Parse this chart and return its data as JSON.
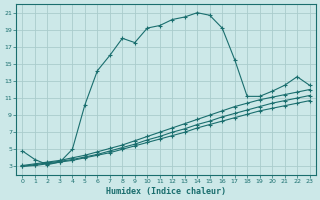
{
  "xlabel": "Humidex (Indice chaleur)",
  "bg_color": "#cce8e8",
  "grid_color": "#aacccc",
  "line_color": "#1a6e6e",
  "x_data": [
    0,
    1,
    2,
    3,
    4,
    5,
    6,
    7,
    8,
    9,
    10,
    11,
    12,
    13,
    14,
    15,
    16,
    17,
    18,
    19,
    20,
    21,
    22,
    23
  ],
  "line1": [
    4.8,
    3.8,
    3.2,
    3.5,
    5.0,
    10.2,
    14.2,
    16.0,
    18.0,
    17.5,
    19.2,
    19.5,
    20.2,
    20.5,
    21.0,
    20.7,
    19.2,
    15.5,
    11.2,
    11.2,
    11.8,
    12.5,
    13.5,
    12.5
  ],
  "line2": [
    3.1,
    3.3,
    3.5,
    3.7,
    4.0,
    4.3,
    4.7,
    5.1,
    5.5,
    6.0,
    6.5,
    7.0,
    7.5,
    8.0,
    8.5,
    9.0,
    9.5,
    10.0,
    10.4,
    10.8,
    11.1,
    11.4,
    11.7,
    12.0
  ],
  "line3": [
    3.0,
    3.2,
    3.4,
    3.6,
    3.8,
    4.1,
    4.4,
    4.8,
    5.2,
    5.6,
    6.1,
    6.5,
    7.0,
    7.4,
    7.9,
    8.3,
    8.8,
    9.2,
    9.6,
    10.0,
    10.4,
    10.7,
    11.0,
    11.3
  ],
  "line4": [
    3.0,
    3.1,
    3.3,
    3.5,
    3.7,
    4.0,
    4.3,
    4.6,
    5.0,
    5.4,
    5.8,
    6.2,
    6.6,
    7.0,
    7.5,
    7.9,
    8.3,
    8.7,
    9.1,
    9.5,
    9.8,
    10.1,
    10.4,
    10.7
  ],
  "ylim": [
    2,
    22
  ],
  "xlim": [
    -0.5,
    23.5
  ],
  "yticks": [
    3,
    5,
    7,
    9,
    11,
    13,
    15,
    17,
    19,
    21
  ],
  "xticks": [
    0,
    1,
    2,
    3,
    4,
    5,
    6,
    7,
    8,
    9,
    10,
    11,
    12,
    13,
    14,
    15,
    16,
    17,
    18,
    19,
    20,
    21,
    22,
    23
  ]
}
